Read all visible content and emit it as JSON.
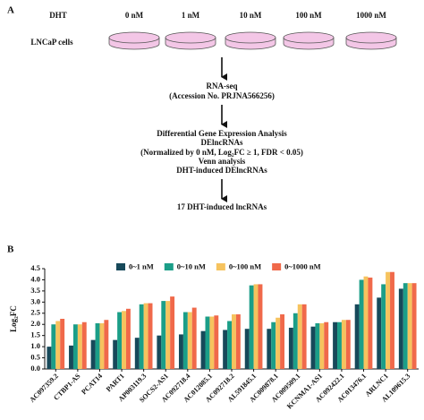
{
  "panel_labels": [
    "A",
    "B"
  ],
  "panel_a": {
    "treatment_label": "DHT",
    "doses": [
      "0 nM",
      "1 nM",
      "10 nM",
      "100 nM",
      "1000 nM"
    ],
    "cells_label": "LNCaP cells",
    "step1": [
      "RNA-seq",
      "(Accession No. PRJNA566256)"
    ],
    "step2": [
      "Differential Gene Expression Analysis",
      "DElncRNAs",
      "(Normalized by 0 nM, Log₂FC ≥ 1, FDR < 0.05)",
      "Venn analysis",
      "DHT-induced DElncRNAs"
    ],
    "result": "17 DHT-induced lncRNAs"
  },
  "chart_data": {
    "type": "bar",
    "y_label": "Log₂FC",
    "categories": [
      "AC097359.2",
      "CTBP1-AS",
      "PCAT14",
      "PART1",
      "AP003119.3",
      "SOCS2-AS1",
      "AC092718.4",
      "AC012085.1",
      "AC092718.2",
      "AL591845.1",
      "AC009878.1",
      "AC009509.1",
      "KCNMA1-AS1",
      "AC092422.1",
      "AC013476.1",
      "ARLNC1",
      "AL109615.3"
    ],
    "series": [
      {
        "name": "0~1 nM",
        "color": "#17495a",
        "values": [
          1.0,
          1.05,
          1.3,
          1.3,
          1.4,
          1.5,
          1.55,
          1.7,
          1.75,
          1.8,
          1.8,
          1.85,
          1.9,
          2.1,
          2.9,
          3.2,
          3.6
        ]
      },
      {
        "name": "0~10 nM",
        "color": "#1b9e88",
        "values": [
          2.0,
          2.0,
          2.05,
          2.55,
          2.9,
          3.05,
          2.55,
          2.35,
          2.15,
          3.75,
          2.1,
          2.5,
          2.05,
          2.1,
          4.0,
          3.8,
          3.85
        ]
      },
      {
        "name": "0~100 nM",
        "color": "#f6c35e",
        "values": [
          2.15,
          2.0,
          2.05,
          2.6,
          2.95,
          3.05,
          2.55,
          2.35,
          2.45,
          3.8,
          2.3,
          2.9,
          2.05,
          2.2,
          4.15,
          4.35,
          3.85
        ]
      },
      {
        "name": "0~1000 nM",
        "color": "#f0694a",
        "values": [
          2.25,
          2.1,
          2.2,
          2.7,
          2.95,
          3.25,
          2.75,
          2.4,
          2.45,
          3.8,
          2.45,
          2.9,
          2.1,
          2.2,
          4.1,
          4.35,
          3.85
        ]
      }
    ],
    "ylim": [
      0,
      4.5
    ],
    "yticks": [
      {
        "value": 0,
        "label": "0.0"
      },
      0.5,
      {
        "value": 1,
        "label": "1.0"
      },
      1.5,
      {
        "value": 2,
        "label": "2.0"
      },
      2.5,
      {
        "value": 3,
        "label": "3.0"
      },
      3.5,
      {
        "value": 4,
        "label": "4.0"
      },
      4.5
    ],
    "legend": "top",
    "grid": false
  }
}
